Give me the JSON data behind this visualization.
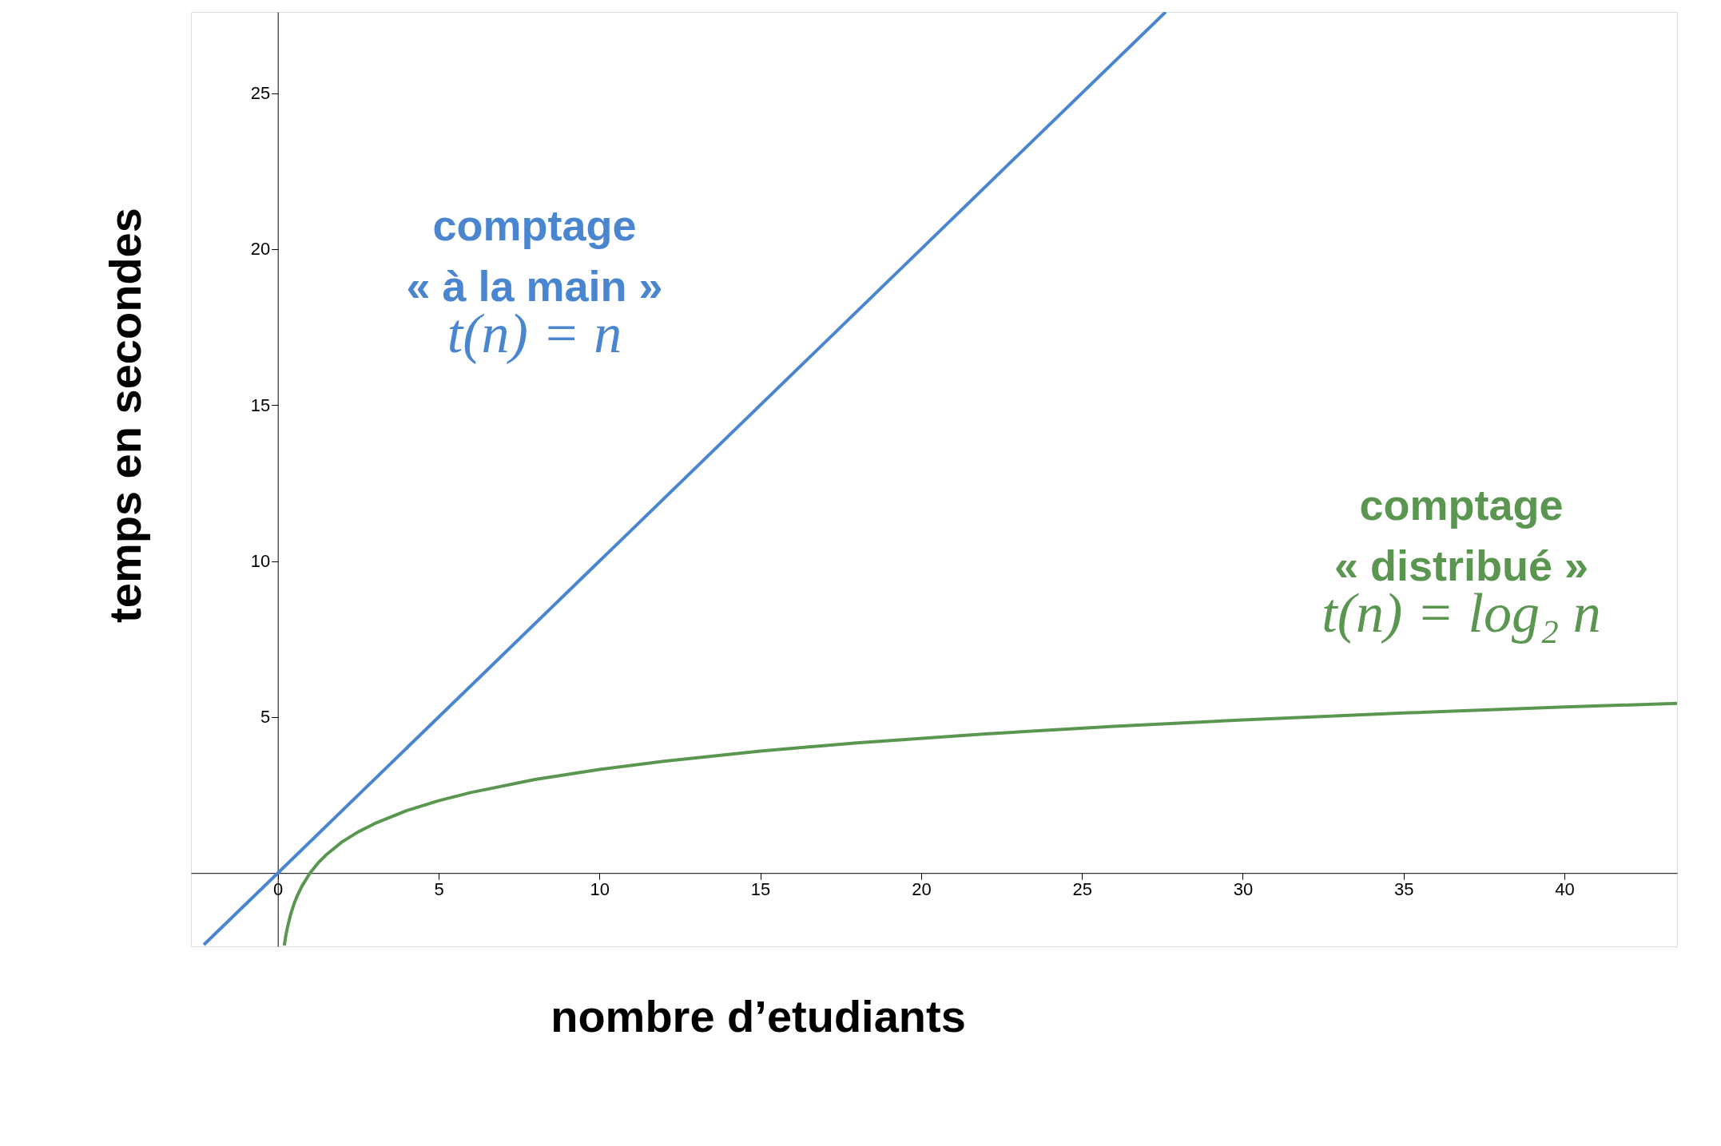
{
  "chart_data": {
    "type": "line",
    "xlabel": "nombre d’etudiants",
    "ylabel": "temps en secondes",
    "xlim": [
      -2.7,
      43.5
    ],
    "ylim": [
      -2.35,
      27.6
    ],
    "xticks": [
      0,
      5,
      10,
      15,
      20,
      25,
      30,
      35,
      40
    ],
    "yticks": [
      5,
      10,
      15,
      20,
      25
    ],
    "grid": false,
    "legend": false,
    "marker": "none",
    "line_style": "solid",
    "series": [
      {
        "name": "comptage\n« à la main »",
        "color": "#4a86d0",
        "x": [
          -2.3,
          0,
          10,
          20,
          27.6
        ],
        "values": [
          -2.3,
          0,
          10,
          20,
          27.6
        ]
      },
      {
        "name": "comptage\n« distribué »",
        "color": "#5a9650",
        "x": [
          0.2,
          0.25,
          0.3,
          0.4,
          0.5,
          0.6,
          0.75,
          1,
          1.25,
          1.5,
          2,
          2.5,
          3,
          4,
          5,
          6,
          8,
          10,
          12,
          15,
          18,
          22,
          26,
          30,
          35,
          40,
          43.5
        ],
        "values": [
          -2.32,
          -2,
          -1.74,
          -1.32,
          -1,
          -0.74,
          -0.42,
          0,
          0.32,
          0.58,
          1,
          1.32,
          1.58,
          2,
          2.32,
          2.58,
          3,
          3.32,
          3.58,
          3.91,
          4.17,
          4.46,
          4.7,
          4.91,
          5.13,
          5.32,
          5.44
        ]
      }
    ],
    "annotations": [
      "t(n) = n",
      "t(n) = log₂ n"
    ]
  }
}
